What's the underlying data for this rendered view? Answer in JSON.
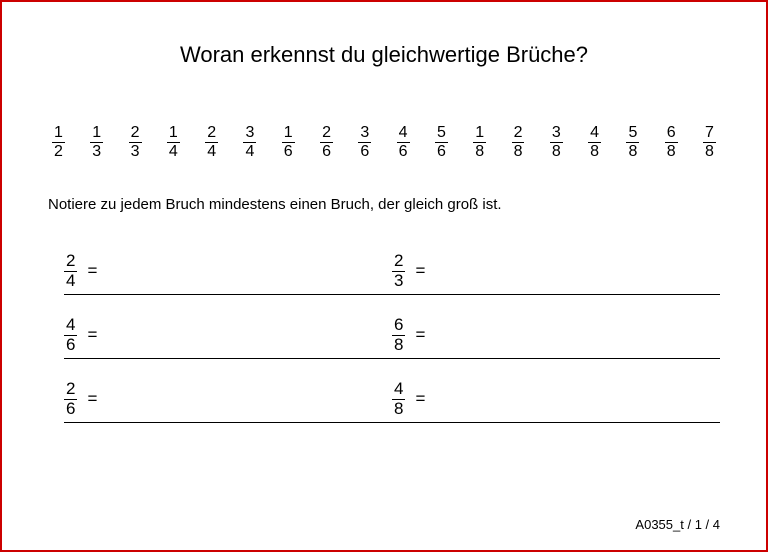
{
  "colors": {
    "border": "#cc0000",
    "background": "#ffffff",
    "text": "#000000"
  },
  "title": "Woran erkennst du gleichwertige Brüche?",
  "fractions": [
    {
      "num": "1",
      "den": "2"
    },
    {
      "num": "1",
      "den": "3"
    },
    {
      "num": "2",
      "den": "3"
    },
    {
      "num": "1",
      "den": "4"
    },
    {
      "num": "2",
      "den": "4"
    },
    {
      "num": "3",
      "den": "4"
    },
    {
      "num": "1",
      "den": "6"
    },
    {
      "num": "2",
      "den": "6"
    },
    {
      "num": "3",
      "den": "6"
    },
    {
      "num": "4",
      "den": "6"
    },
    {
      "num": "5",
      "den": "6"
    },
    {
      "num": "1",
      "den": "8"
    },
    {
      "num": "2",
      "den": "8"
    },
    {
      "num": "3",
      "den": "8"
    },
    {
      "num": "4",
      "den": "8"
    },
    {
      "num": "5",
      "den": "8"
    },
    {
      "num": "6",
      "den": "8"
    },
    {
      "num": "7",
      "den": "8"
    }
  ],
  "instruction": "Notiere zu jedem Bruch mindestens einen Bruch, der gleich groß ist.",
  "exercises": [
    {
      "left": {
        "num": "2",
        "den": "4"
      },
      "right": {
        "num": "2",
        "den": "3"
      }
    },
    {
      "left": {
        "num": "4",
        "den": "6"
      },
      "right": {
        "num": "6",
        "den": "8"
      }
    },
    {
      "left": {
        "num": "2",
        "den": "6"
      },
      "right": {
        "num": "4",
        "den": "8"
      }
    }
  ],
  "eq": "=",
  "footer": "A0355_t / 1 / 4"
}
